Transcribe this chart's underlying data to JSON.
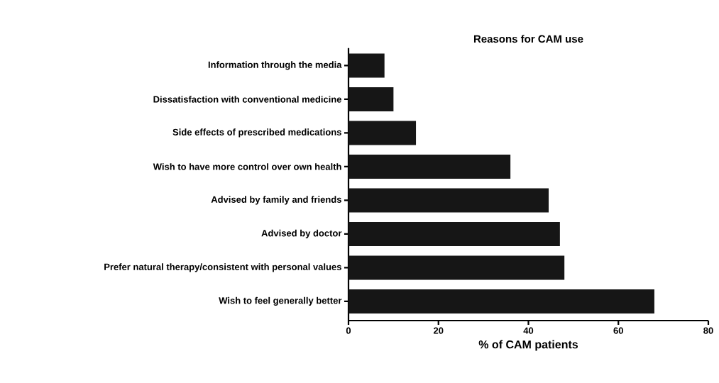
{
  "chart_data": {
    "type": "bar",
    "orientation": "horizontal",
    "title": "Reasons for CAM use",
    "xlabel": "% of CAM patients",
    "categories": [
      "Information through the media",
      "Dissatisfaction with conventional medicine",
      "Side effects of prescribed medications",
      "Wish to have more control over own health",
      "Advised by family and friends",
      "Advised by doctor",
      "Prefer natural therapy/consistent with personal values",
      "Wish to feel generally better"
    ],
    "values": [
      8,
      10,
      15,
      36,
      44.5,
      47,
      48,
      68
    ],
    "color": "#161616",
    "xlim": [
      0,
      80
    ],
    "xticks": [
      0,
      20,
      40,
      60,
      80
    ],
    "grid": false
  }
}
